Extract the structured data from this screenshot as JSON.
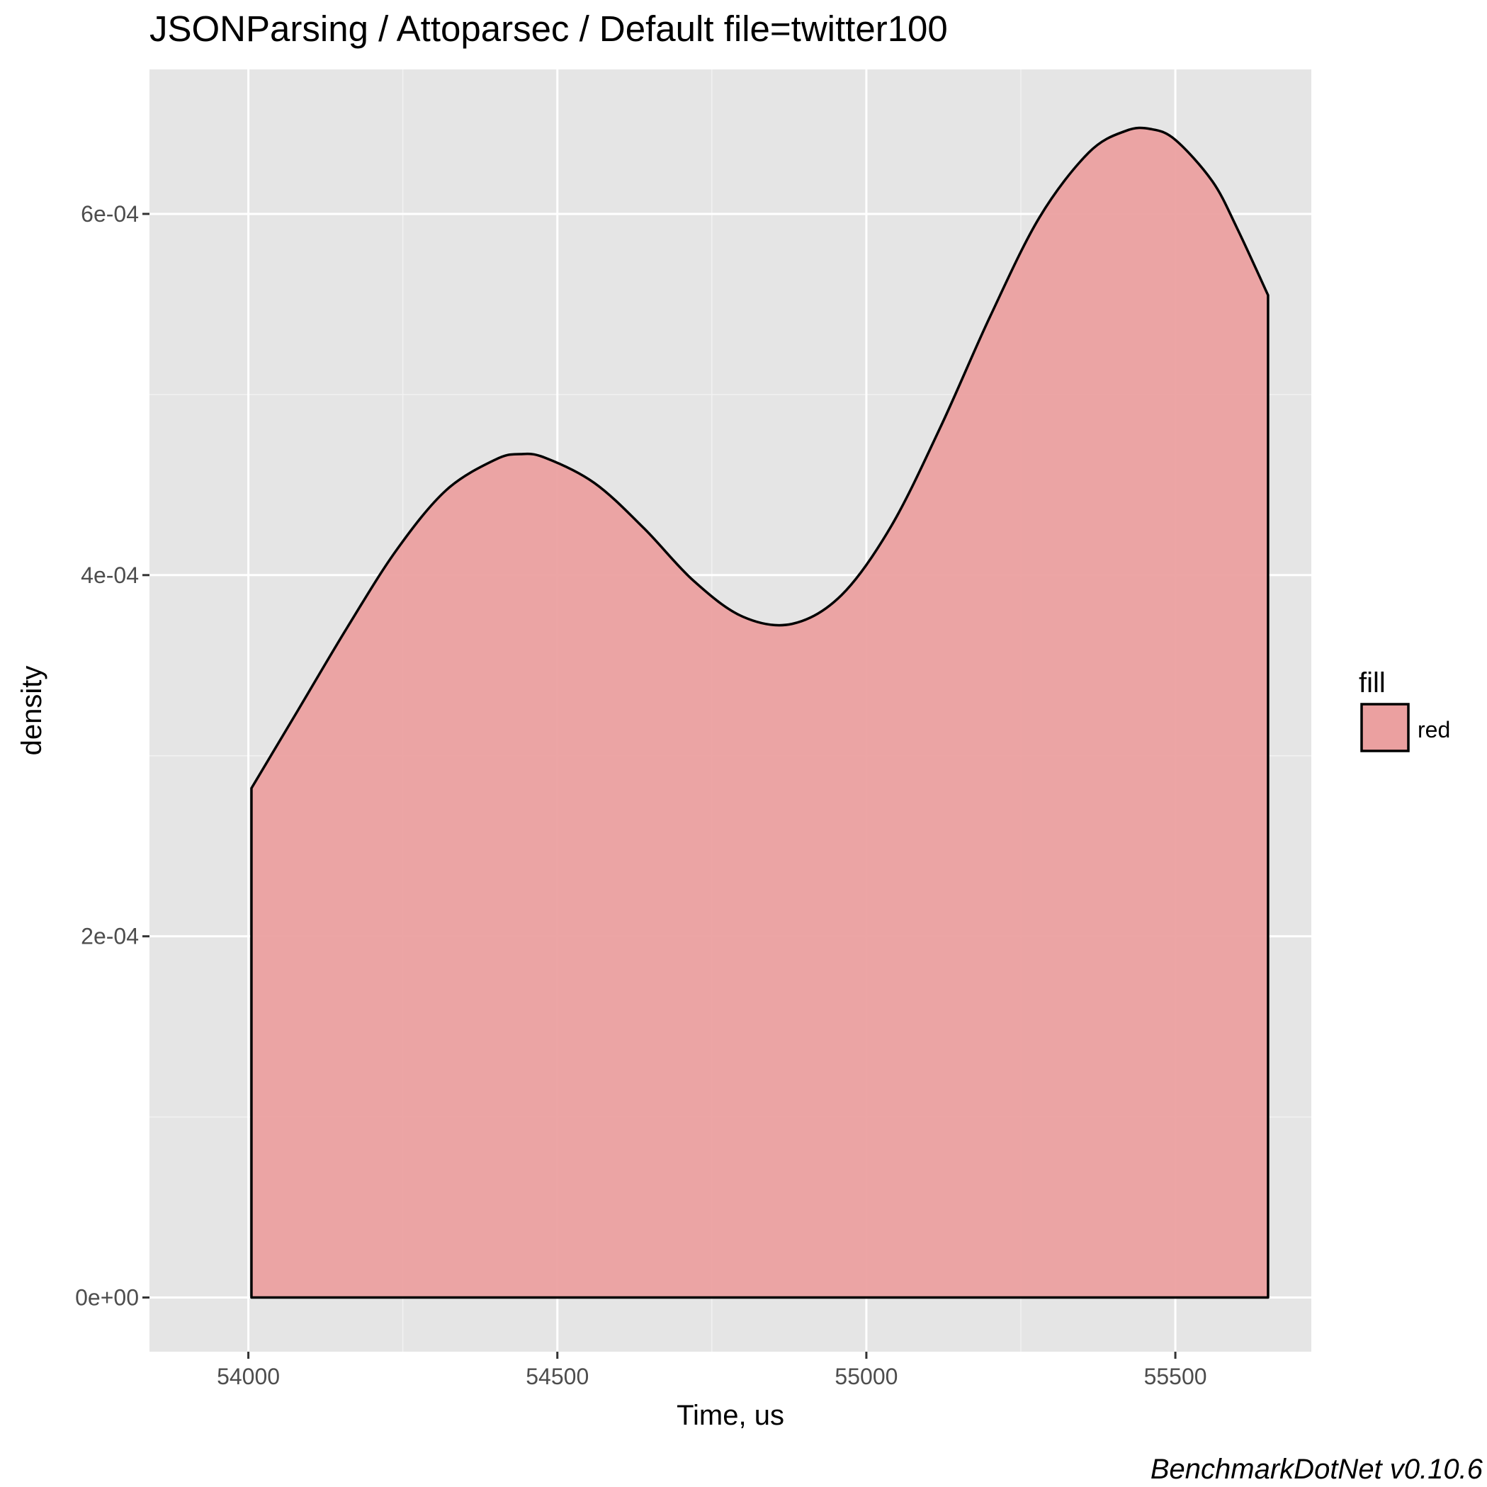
{
  "chart_data": {
    "type": "area",
    "title": "JSONParsing / Attoparsec / Default file=twitter100",
    "xlabel": "Time, us",
    "ylabel": "density",
    "caption": "BenchmarkDotNet v0.10.6",
    "xlim": [
      53840,
      55720
    ],
    "ylim": [
      -3e-05,
      0.00068
    ],
    "x_ticks": [
      54000,
      54500,
      55000,
      55500
    ],
    "x_tick_labels": [
      "54000",
      "54500",
      "55000",
      "55500"
    ],
    "y_ticks": [
      0,
      0.0002,
      0.0004,
      0.0006
    ],
    "y_tick_labels": [
      "0e+00",
      "2e-04",
      "4e-04",
      "6e-04"
    ],
    "grid": true,
    "legend": {
      "title": "fill",
      "position": "right",
      "entries": [
        {
          "label": "red",
          "color": "#eba0a0"
        }
      ]
    },
    "series": [
      {
        "name": "red",
        "fill_color": "#eba0a0",
        "line_color": "#000000",
        "x": [
          54005,
          54080,
          54160,
          54240,
          54320,
          54400,
          54440,
          54480,
          54560,
          54640,
          54720,
          54800,
          54880,
          54960,
          55040,
          55120,
          55200,
          55280,
          55360,
          55420,
          55460,
          55500,
          55560,
          55600,
          55650
        ],
        "y": [
          0.000282,
          0.000325,
          0.000371,
          0.000414,
          0.000447,
          0.000464,
          0.000467,
          0.000465,
          0.000451,
          0.000426,
          0.000397,
          0.000377,
          0.000373,
          0.000389,
          0.000427,
          0.000482,
          0.000543,
          0.000598,
          0.000634,
          0.000646,
          0.000647,
          0.000641,
          0.000618,
          0.000592,
          0.000555
        ]
      }
    ]
  },
  "colors": {
    "panel_background": "#e5e5e5",
    "grid_major": "#ffffff",
    "grid_minor": "#f2f2f2",
    "density_fill": "#eba0a0",
    "outline": "#000000",
    "tick_mark": "#333333"
  }
}
